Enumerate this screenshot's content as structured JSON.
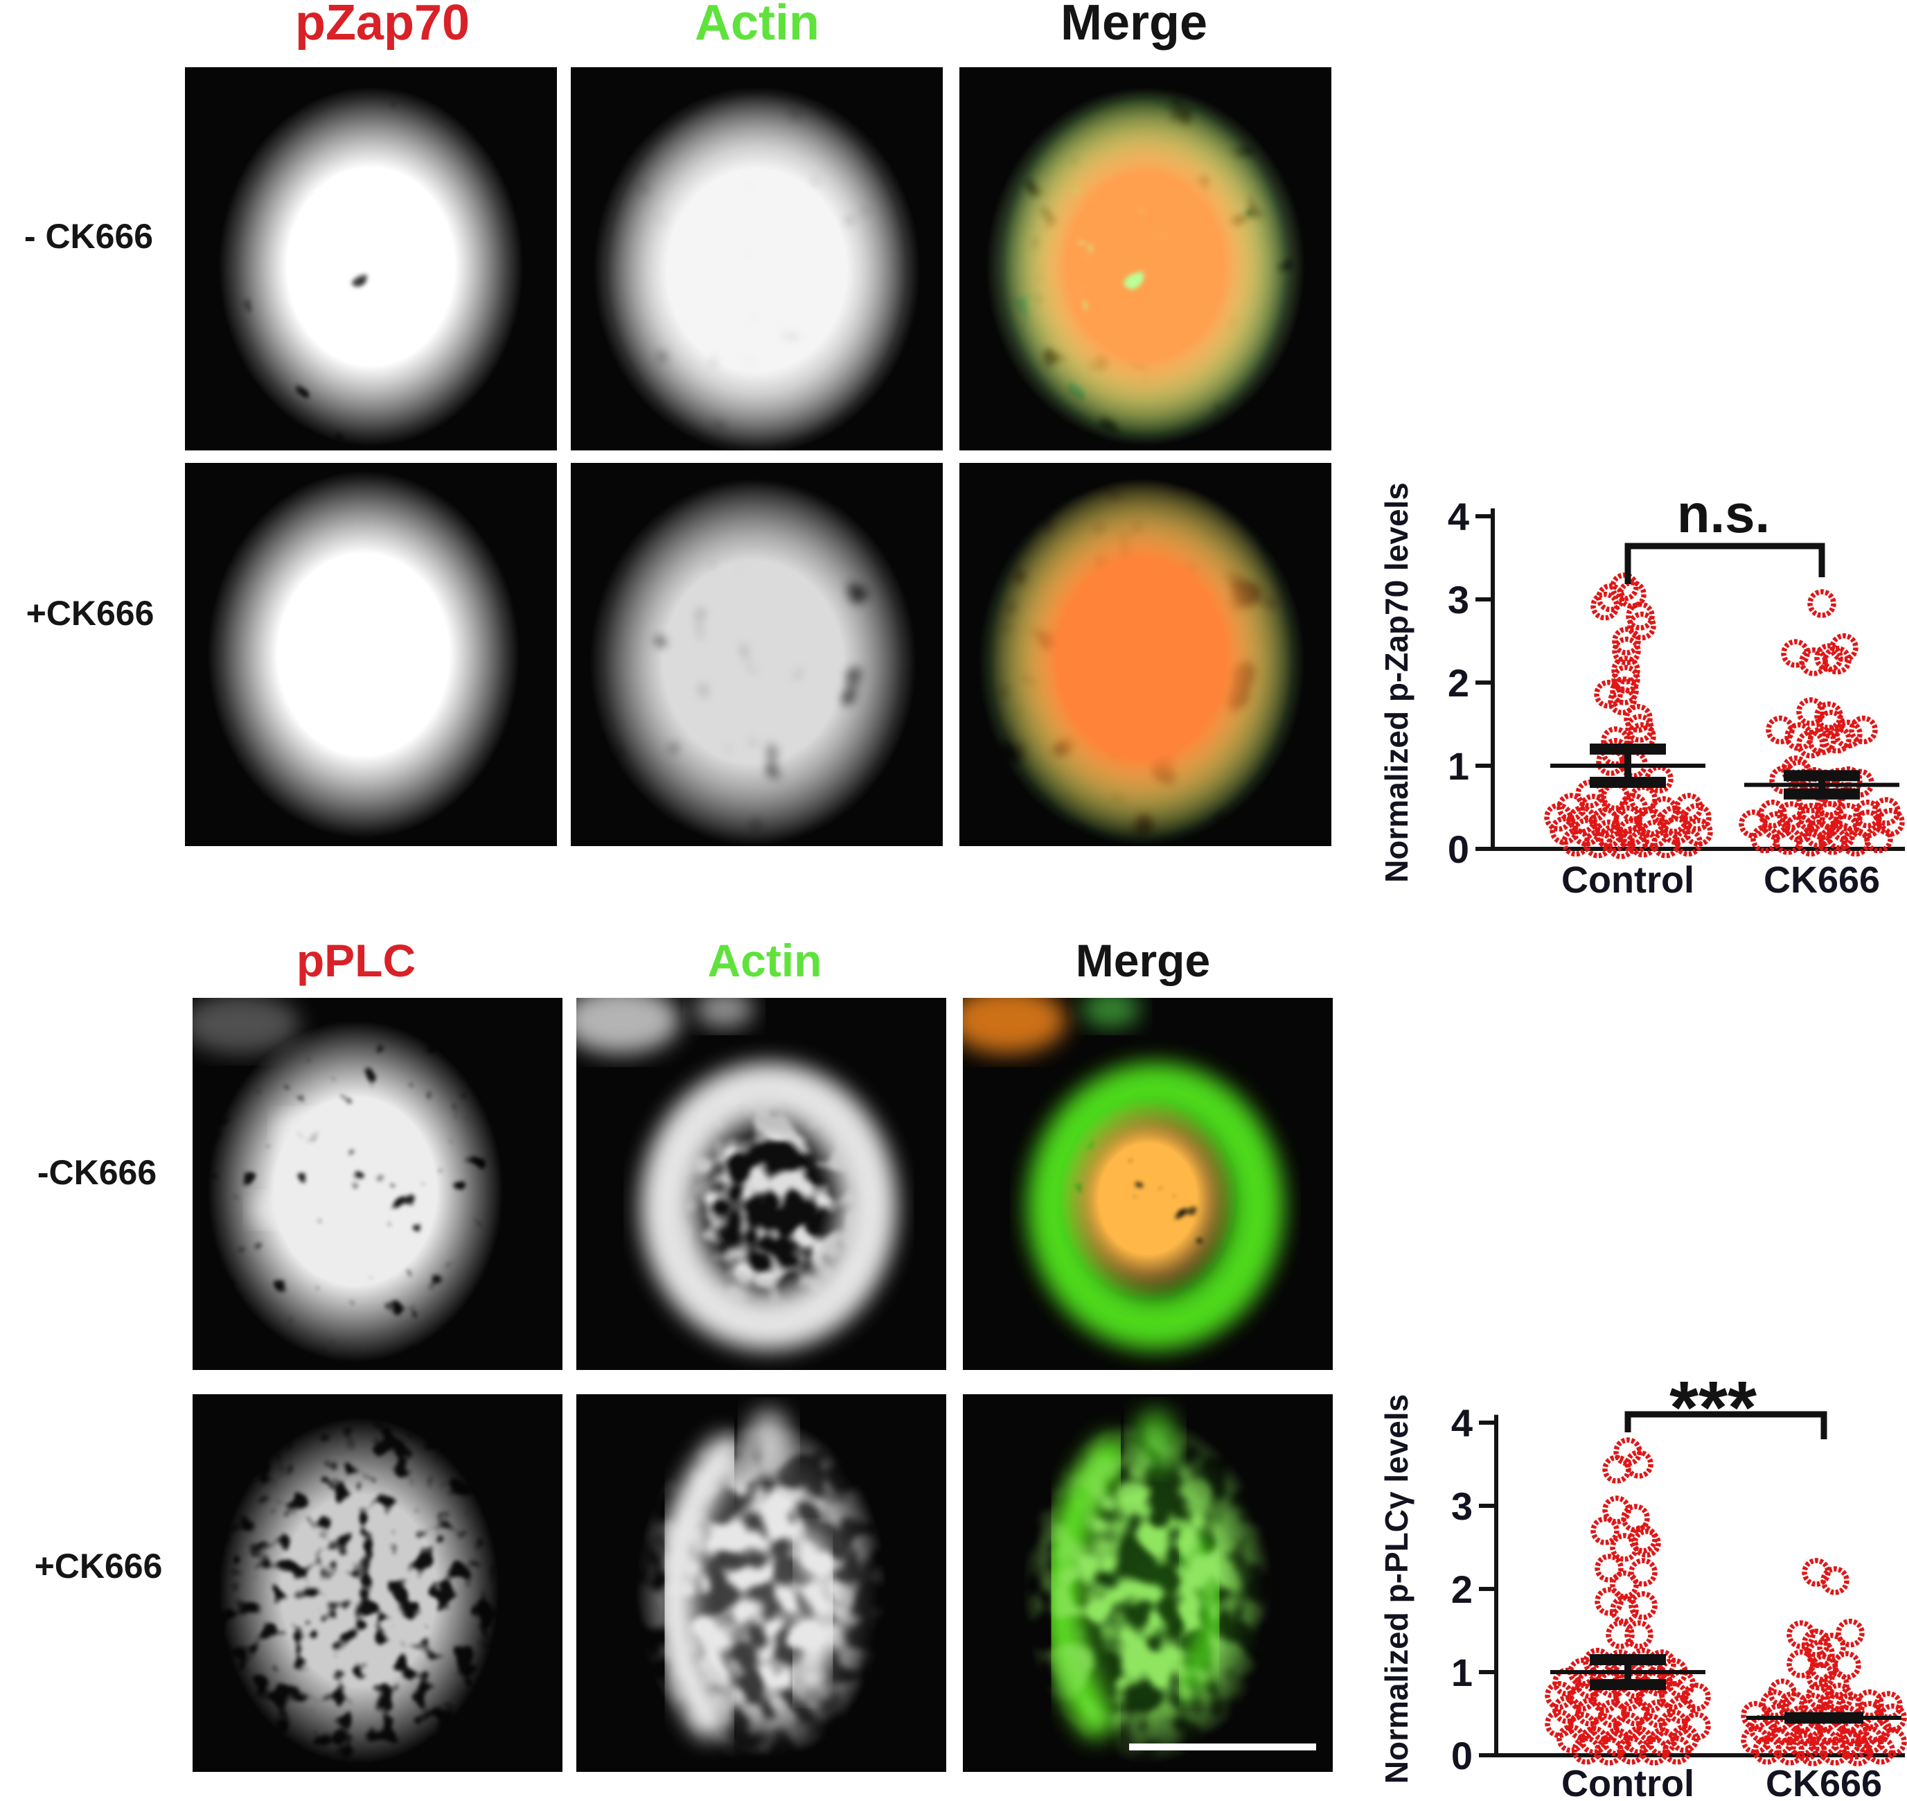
{
  "figure": {
    "background": "#ffffff",
    "section_zap70": {
      "col_headers": [
        {
          "label": "pZap70",
          "color": "#d92127"
        },
        {
          "label": "Actin",
          "color": "#5fe23c"
        },
        {
          "label": "Merge",
          "color": "#141414"
        }
      ],
      "row_labels": [
        "- CK666",
        "+CK666"
      ],
      "panels": [
        {
          "row": "- CK666",
          "channel": "pZap70",
          "appearance": "grayscale punctate fluorescence cell"
        },
        {
          "row": "- CK666",
          "channel": "Actin",
          "appearance": "bright grayscale actin cloud"
        },
        {
          "row": "- CK666",
          "channel": "Merge",
          "appearance": "green cell with sparse orange puncta"
        },
        {
          "row": "+CK666",
          "channel": "pZap70",
          "appearance": "dense bright white puncta"
        },
        {
          "row": "+CK666",
          "channel": "Actin",
          "appearance": "dim uniform grayscale cell"
        },
        {
          "row": "+CK666",
          "channel": "Merge",
          "appearance": "dark green cell with dense red puncta"
        }
      ]
    },
    "section_plc": {
      "col_headers": [
        {
          "label": "pPLC",
          "color": "#d92127"
        },
        {
          "label": "Actin",
          "color": "#5fe23c"
        },
        {
          "label": "Merge",
          "color": "#141414"
        }
      ],
      "row_labels": [
        "-CK666",
        "+CK666"
      ],
      "panels": [
        {
          "row": "-CK666",
          "channel": "pPLC",
          "appearance": "sparse dim grayscale puncta"
        },
        {
          "row": "-CK666",
          "channel": "Actin",
          "appearance": "bright grayscale ring-shaped cell"
        },
        {
          "row": "-CK666",
          "channel": "Merge",
          "appearance": "bright green ring with orange-yellow puncta inside"
        },
        {
          "row": "+CK666",
          "channel": "pPLC",
          "appearance": "very faint sparse puncta"
        },
        {
          "row": "+CK666",
          "channel": "Actin",
          "appearance": "bright irregular crescent-shaped cell"
        },
        {
          "row": "+CK666",
          "channel": "Merge",
          "appearance": "green crescent-shaped cell"
        }
      ],
      "scale_bar_color": "#ffffff"
    }
  },
  "chart_data": [
    {
      "type": "scatter",
      "title": "",
      "ylabel": "Normalized p-Zap70 levels",
      "xlabel": "",
      "ylim": [
        0,
        4
      ],
      "yticks": [
        0,
        1,
        2,
        3,
        4
      ],
      "categories": [
        "Control",
        "CK666"
      ],
      "significance": "n.s.",
      "marker": {
        "shape": "open-circle",
        "color": "#e01616"
      },
      "series": [
        {
          "name": "Control",
          "mean": 1.0,
          "sem": [
            0.8,
            1.2
          ],
          "err_style": "caps",
          "points": [
            [
              -5,
              3.15
            ],
            [
              -25,
              3.02
            ],
            [
              6,
              3.06
            ],
            [
              -33,
              2.92
            ],
            [
              18,
              2.8
            ],
            [
              20,
              2.68
            ],
            [
              -2,
              2.5
            ],
            [
              -2,
              2.38
            ],
            [
              -3,
              2.15
            ],
            [
              -3,
              2.04
            ],
            [
              -28,
              1.86
            ],
            [
              -5,
              1.9
            ],
            [
              -8,
              1.78
            ],
            [
              15,
              1.57
            ],
            [
              17,
              1.45
            ],
            [
              20,
              1.35
            ],
            [
              -18,
              1.3
            ],
            [
              -18,
              1.16
            ],
            [
              -25,
              1.05
            ],
            [
              8,
              1.02
            ],
            [
              45,
              0.84
            ],
            [
              -55,
              0.66
            ],
            [
              -18,
              0.63
            ],
            [
              22,
              0.6
            ],
            [
              -82,
              0.5
            ],
            [
              -50,
              0.49
            ],
            [
              8,
              0.5
            ],
            [
              52,
              0.46
            ],
            [
              88,
              0.5
            ],
            [
              -100,
              0.38
            ],
            [
              -66,
              0.35
            ],
            [
              -33,
              0.33
            ],
            [
              0,
              0.35
            ],
            [
              33,
              0.32
            ],
            [
              66,
              0.35
            ],
            [
              100,
              0.38
            ],
            [
              -92,
              0.22
            ],
            [
              -60,
              0.2
            ],
            [
              -28,
              0.18
            ],
            [
              5,
              0.2
            ],
            [
              38,
              0.18
            ],
            [
              70,
              0.22
            ],
            [
              102,
              0.2
            ],
            [
              -75,
              0.08
            ],
            [
              -43,
              0.06
            ],
            [
              -10,
              0.05
            ],
            [
              22,
              0.07
            ],
            [
              55,
              0.06
            ],
            [
              87,
              0.08
            ],
            [
              -22,
              0.12
            ],
            [
              10,
              0.11
            ]
          ]
        },
        {
          "name": "CK666",
          "mean": 0.77,
          "sem": [
            0.66,
            0.88
          ],
          "err_style": "caps",
          "points": [
            [
              0,
              2.95
            ],
            [
              -38,
              2.35
            ],
            [
              -12,
              2.25
            ],
            [
              10,
              2.3
            ],
            [
              32,
              2.42
            ],
            [
              22,
              2.27
            ],
            [
              -16,
              1.65
            ],
            [
              10,
              1.6
            ],
            [
              13,
              1.5
            ],
            [
              -60,
              1.43
            ],
            [
              -33,
              1.35
            ],
            [
              -16,
              1.26
            ],
            [
              0,
              1.3
            ],
            [
              22,
              1.32
            ],
            [
              38,
              1.38
            ],
            [
              60,
              1.43
            ],
            [
              -38,
              0.95
            ],
            [
              -33,
              0.9
            ],
            [
              -55,
              0.83
            ],
            [
              -27,
              0.79
            ],
            [
              -11,
              0.81
            ],
            [
              5,
              0.78
            ],
            [
              22,
              0.8
            ],
            [
              38,
              0.82
            ],
            [
              55,
              0.79
            ],
            [
              16,
              0.68
            ],
            [
              -16,
              0.6
            ],
            [
              11,
              0.55
            ],
            [
              -71,
              0.42
            ],
            [
              -44,
              0.4
            ],
            [
              -16,
              0.38
            ],
            [
              11,
              0.4
            ],
            [
              38,
              0.38
            ],
            [
              66,
              0.42
            ],
            [
              93,
              0.45
            ],
            [
              -99,
              0.3
            ],
            [
              -66,
              0.28
            ],
            [
              -33,
              0.25
            ],
            [
              0,
              0.28
            ],
            [
              33,
              0.25
            ],
            [
              66,
              0.3
            ],
            [
              99,
              0.32
            ],
            [
              -82,
              0.12
            ],
            [
              -49,
              0.1
            ],
            [
              -16,
              0.08
            ],
            [
              16,
              0.1
            ],
            [
              49,
              0.08
            ],
            [
              82,
              0.12
            ],
            [
              -5,
              0.18
            ],
            [
              27,
              0.15
            ]
          ]
        }
      ]
    },
    {
      "type": "scatter",
      "title": "",
      "ylabel": "Normalized p-PLCγ levels",
      "xlabel": "",
      "ylim": [
        0,
        4
      ],
      "yticks": [
        0,
        1,
        2,
        3,
        4
      ],
      "categories": [
        "Control",
        "CK666"
      ],
      "significance": "***",
      "marker": {
        "shape": "open-circle",
        "color": "#e01616"
      },
      "series": [
        {
          "name": "Control",
          "mean": 1.0,
          "sem": [
            0.85,
            1.15
          ],
          "err_style": "caps",
          "points": [
            [
              0,
              3.65
            ],
            [
              16,
              3.5
            ],
            [
              -16,
              3.44
            ],
            [
              -16,
              2.95
            ],
            [
              11,
              2.85
            ],
            [
              -33,
              2.7
            ],
            [
              22,
              2.6
            ],
            [
              -5,
              2.5
            ],
            [
              27,
              2.55
            ],
            [
              -27,
              2.25
            ],
            [
              22,
              2.2
            ],
            [
              -5,
              2.05
            ],
            [
              -27,
              1.85
            ],
            [
              -5,
              1.75
            ],
            [
              22,
              1.8
            ],
            [
              -11,
              1.45
            ],
            [
              16,
              1.45
            ],
            [
              -44,
              1.12
            ],
            [
              -11,
              1.1
            ],
            [
              22,
              1.12
            ],
            [
              49,
              1.1
            ],
            [
              -66,
              1.0
            ],
            [
              -33,
              0.98
            ],
            [
              0,
              1.0
            ],
            [
              33,
              0.98
            ],
            [
              66,
              1.0
            ],
            [
              -88,
              0.88
            ],
            [
              -55,
              0.85
            ],
            [
              -22,
              0.86
            ],
            [
              11,
              0.85
            ],
            [
              44,
              0.88
            ],
            [
              77,
              0.86
            ],
            [
              -99,
              0.72
            ],
            [
              -66,
              0.7
            ],
            [
              -33,
              0.68
            ],
            [
              0,
              0.7
            ],
            [
              33,
              0.68
            ],
            [
              66,
              0.72
            ],
            [
              99,
              0.7
            ],
            [
              -88,
              0.55
            ],
            [
              -55,
              0.52
            ],
            [
              -22,
              0.5
            ],
            [
              11,
              0.52
            ],
            [
              44,
              0.5
            ],
            [
              77,
              0.55
            ],
            [
              -99,
              0.38
            ],
            [
              -66,
              0.35
            ],
            [
              -33,
              0.33
            ],
            [
              0,
              0.35
            ],
            [
              33,
              0.33
            ],
            [
              66,
              0.38
            ],
            [
              99,
              0.35
            ],
            [
              -82,
              0.2
            ],
            [
              -49,
              0.18
            ],
            [
              -16,
              0.16
            ],
            [
              16,
              0.18
            ],
            [
              49,
              0.16
            ],
            [
              82,
              0.2
            ],
            [
              -60,
              0.06
            ],
            [
              -27,
              0.05
            ],
            [
              5,
              0.06
            ],
            [
              38,
              0.05
            ],
            [
              71,
              0.06
            ]
          ]
        },
        {
          "name": "CK666",
          "mean": 0.45,
          "sem": [
            0.38,
            0.52
          ],
          "err_style": "band",
          "points": [
            [
              -11,
              2.2
            ],
            [
              16,
              2.1
            ],
            [
              -33,
              1.45
            ],
            [
              38,
              1.47
            ],
            [
              -11,
              1.35
            ],
            [
              11,
              1.3
            ],
            [
              -5,
              1.22
            ],
            [
              -33,
              1.1
            ],
            [
              0,
              1.05
            ],
            [
              33,
              1.08
            ],
            [
              -5,
              0.95
            ],
            [
              16,
              0.85
            ],
            [
              -60,
              0.75
            ],
            [
              -5,
              0.72
            ],
            [
              22,
              0.7
            ],
            [
              -71,
              0.62
            ],
            [
              -44,
              0.6
            ],
            [
              -16,
              0.58
            ],
            [
              11,
              0.6
            ],
            [
              38,
              0.58
            ],
            [
              66,
              0.62
            ],
            [
              93,
              0.6
            ],
            [
              -99,
              0.48
            ],
            [
              -66,
              0.45
            ],
            [
              -33,
              0.43
            ],
            [
              0,
              0.45
            ],
            [
              33,
              0.43
            ],
            [
              66,
              0.48
            ],
            [
              99,
              0.45
            ],
            [
              -88,
              0.32
            ],
            [
              -55,
              0.3
            ],
            [
              -22,
              0.28
            ],
            [
              11,
              0.3
            ],
            [
              44,
              0.28
            ],
            [
              77,
              0.32
            ],
            [
              -99,
              0.18
            ],
            [
              -66,
              0.16
            ],
            [
              -33,
              0.15
            ],
            [
              0,
              0.16
            ],
            [
              33,
              0.15
            ],
            [
              66,
              0.18
            ],
            [
              99,
              0.16
            ],
            [
              -82,
              0.06
            ],
            [
              -49,
              0.05
            ],
            [
              -16,
              0.04
            ],
            [
              16,
              0.05
            ],
            [
              49,
              0.04
            ],
            [
              82,
              0.06
            ],
            [
              44,
              0.12
            ],
            [
              -27,
              0.1
            ]
          ]
        }
      ]
    }
  ]
}
